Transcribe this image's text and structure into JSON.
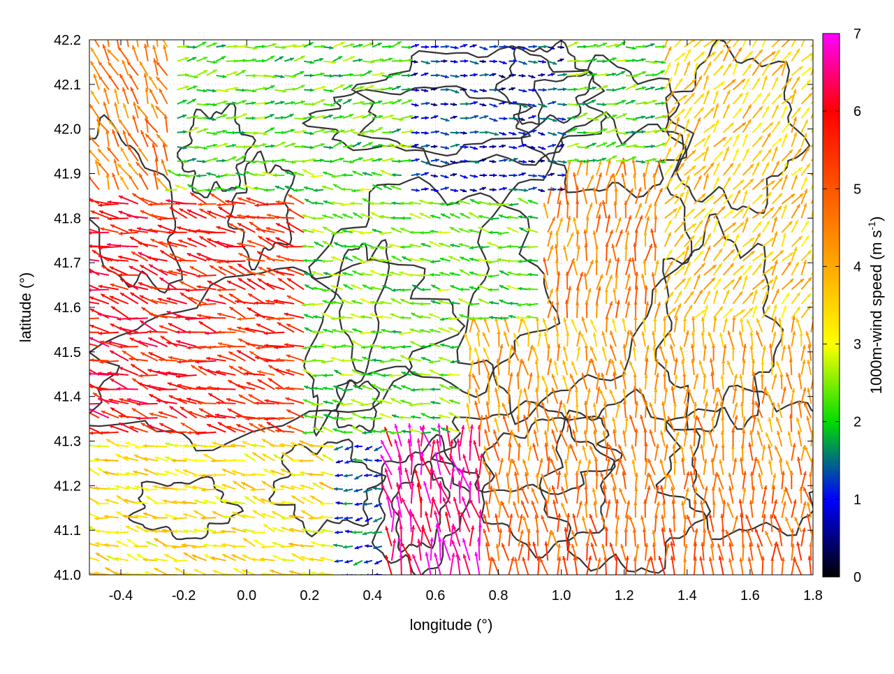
{
  "chart_data": {
    "type": "quiver",
    "xlabel": "longitude (°)",
    "ylabel": "latitude (°)",
    "colorbar_label": "1000m-wind speed (m s⁻¹)",
    "colorbar_label_parts": {
      "main": "1000m-wind speed (m s",
      "exp": "-1",
      "tail": ")"
    },
    "xlim": [
      -0.5,
      1.8
    ],
    "ylim": [
      41.0,
      42.2
    ],
    "clim": [
      0,
      7
    ],
    "x_ticks": [
      -0.4,
      -0.2,
      0.0,
      0.2,
      0.4,
      0.6,
      0.8,
      1.0,
      1.2,
      1.4,
      1.6,
      1.8
    ],
    "x_tick_labels": [
      "-0.4",
      "-0.2",
      "0.0",
      "0.2",
      "0.4",
      "0.6",
      "0.8",
      "1.0",
      "1.2",
      "1.4",
      "1.6",
      "1.8"
    ],
    "y_ticks": [
      41.0,
      41.1,
      41.2,
      41.3,
      41.4,
      41.5,
      41.6,
      41.7,
      41.8,
      41.9,
      42.0,
      42.1,
      42.2
    ],
    "y_tick_labels": [
      "41.0",
      "41.1",
      "41.2",
      "41.3",
      "41.4",
      "41.5",
      "41.6",
      "41.7",
      "41.8",
      "41.9",
      "42.0",
      "42.1",
      "42.2"
    ],
    "cbar_ticks": [
      0,
      1,
      2,
      3,
      4,
      5,
      6,
      7
    ],
    "cbar_tick_labels": [
      "0",
      "1",
      "2",
      "3",
      "4",
      "5",
      "6",
      "7"
    ],
    "colormap_stops": [
      {
        "v": 0,
        "color": "#000000"
      },
      {
        "v": 1,
        "color": "#0000ff"
      },
      {
        "v": 2,
        "color": "#00dd00"
      },
      {
        "v": 3,
        "color": "#ffff00"
      },
      {
        "v": 4,
        "color": "#ffaa00"
      },
      {
        "v": 5,
        "color": "#ff5500"
      },
      {
        "v": 6,
        "color": "#ff0000"
      },
      {
        "v": 7,
        "color": "#ff00ff"
      }
    ],
    "contour_color": "#333333",
    "grid": "dotted",
    "wind_regions": [
      {
        "region": "northwest corner",
        "direction_deg_from_east": 120,
        "speed": 4.5
      },
      {
        "region": "west coast strong westerly flow",
        "direction_deg_from_east": 165,
        "speed": 6.0
      },
      {
        "region": "central plateau",
        "direction_deg_from_east": 170,
        "speed": 2.2
      },
      {
        "region": "north valley",
        "direction_deg_from_east": 0,
        "speed": 1.0
      },
      {
        "region": "east",
        "direction_deg_from_east": 60,
        "speed": 3.8
      },
      {
        "region": "southeast",
        "direction_deg_from_east": 95,
        "speed": 5.0
      },
      {
        "region": "south-central peak",
        "direction_deg_from_east": 100,
        "speed": 6.8
      },
      {
        "region": "south-central valley",
        "direction_deg_from_east": 180,
        "speed": 1.2
      },
      {
        "region": "southwest coast",
        "direction_deg_from_east": 160,
        "speed": 3.3
      }
    ]
  }
}
